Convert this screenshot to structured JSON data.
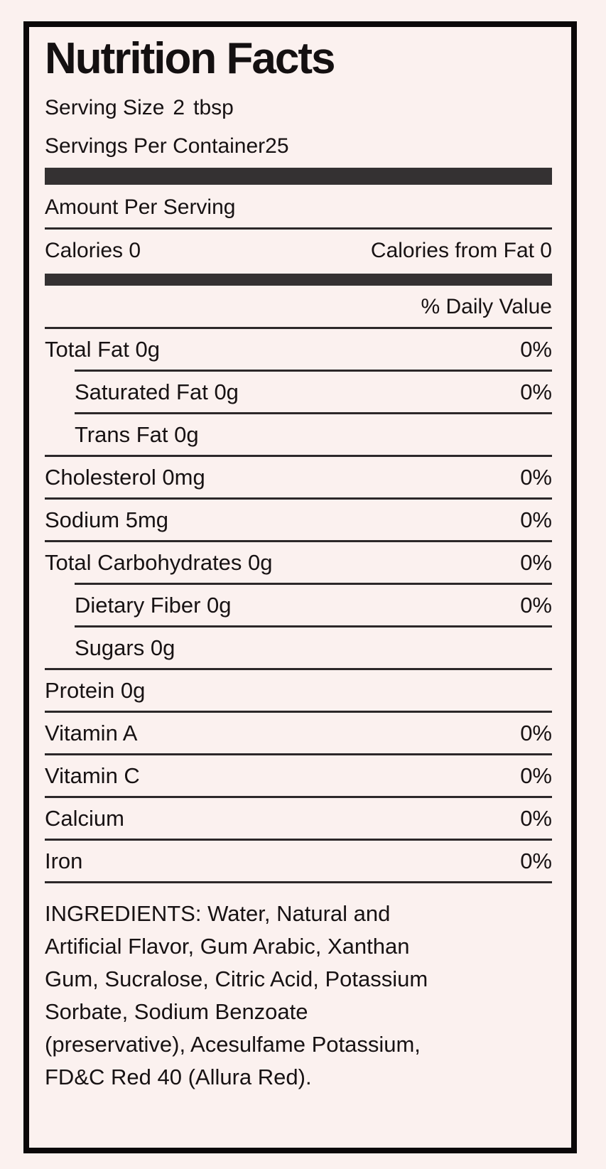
{
  "title": "Nutrition Facts",
  "serving": {
    "size_label": "Serving Size",
    "size_value": "2",
    "size_unit": "tbsp",
    "per_container_label": "Servings Per Container",
    "per_container_value": "25"
  },
  "amount_per_serving": "Amount Per Serving",
  "calories": {
    "label": "Calories 0",
    "from_fat": "Calories from Fat 0"
  },
  "daily_value_header": "% Daily Value",
  "nutrients": [
    {
      "label": "Total Fat 0g",
      "value": "0%",
      "indent": false,
      "rule_indent": true
    },
    {
      "label": "Saturated Fat 0g",
      "value": "0%",
      "indent": true,
      "rule_indent": true
    },
    {
      "label": "Trans Fat 0g",
      "value": "",
      "indent": true,
      "rule_indent": false
    },
    {
      "label": "Cholesterol 0mg",
      "value": "0%",
      "indent": false,
      "rule_indent": false
    },
    {
      "label": "Sodium 5mg",
      "value": "0%",
      "indent": false,
      "rule_indent": false
    },
    {
      "label": "Total Carbohydrates 0g",
      "value": "0%",
      "indent": false,
      "rule_indent": true
    },
    {
      "label": "Dietary Fiber 0g",
      "value": "0%",
      "indent": true,
      "rule_indent": true
    },
    {
      "label": "Sugars 0g",
      "value": "",
      "indent": true,
      "rule_indent": false
    },
    {
      "label": "Protein 0g",
      "value": "",
      "indent": false,
      "rule_indent": false
    },
    {
      "label": "Vitamin A",
      "value": "0%",
      "indent": false,
      "rule_indent": false
    },
    {
      "label": "Vitamin C",
      "value": "0%",
      "indent": false,
      "rule_indent": false
    },
    {
      "label": "Calcium",
      "value": "0%",
      "indent": false,
      "rule_indent": false
    },
    {
      "label": "Iron",
      "value": "0%",
      "indent": false,
      "rule_indent": false
    }
  ],
  "ingredients_lines": [
    "INGREDIENTS: Water, Natural and",
    "Artificial Flavor, Gum Arabic, Xanthan",
    "Gum, Sucralose, Citric Acid, Potassium",
    "Sorbate, Sodium Benzoate",
    "(preservative), Acesulfame Potassium,",
    "FD&C Red 40 (Allura Red)."
  ],
  "colors": {
    "background": "#fbf1ef",
    "ink": "#171213",
    "thick_bar": "#343132",
    "thin_rule": "#2c2829",
    "border": "#0b0809"
  }
}
